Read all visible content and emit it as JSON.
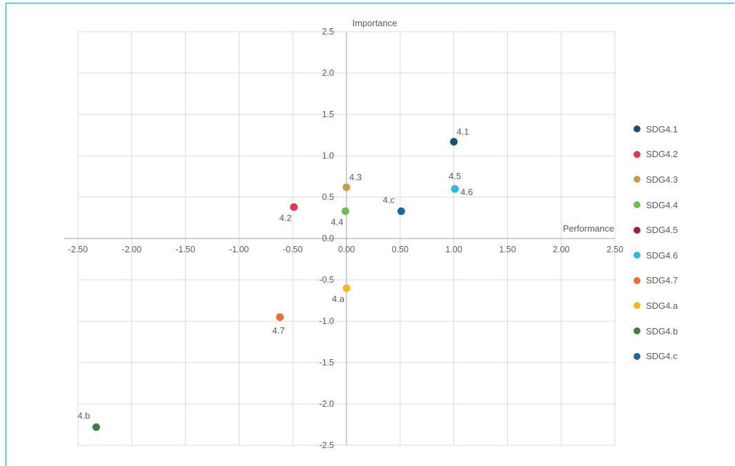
{
  "chart_data": {
    "type": "scatter",
    "title": "",
    "xlabel": "Performance",
    "ylabel": "Importance",
    "xlim": [
      -2.5,
      2.5
    ],
    "ylim": [
      -2.5,
      2.5
    ],
    "x_ticks": [
      "-2.50",
      "-2.00",
      "-1.50",
      "-1.00",
      "-0.50",
      "0.00",
      "0.50",
      "1.00",
      "1.50",
      "2.00",
      "2.50"
    ],
    "y_ticks": [
      "2.5",
      "2.0",
      "1.5",
      "1.0",
      "0.5",
      "0.0",
      "-0.5",
      "-1.0",
      "-1.5",
      "-2.0",
      "-2.5"
    ],
    "x_tick_values": [
      -2.5,
      -2.0,
      -1.5,
      -1.0,
      -0.5,
      0.0,
      0.5,
      1.0,
      1.5,
      2.0,
      2.5
    ],
    "y_tick_values": [
      2.5,
      2.0,
      1.5,
      1.0,
      0.5,
      0.0,
      -0.5,
      -1.0,
      -1.5,
      -2.0,
      -2.5
    ],
    "grid": true,
    "legend_position": "right",
    "series": [
      {
        "name": "SDG4.1",
        "label": "4.1",
        "x": 1.0,
        "y": 1.17,
        "color": "#1b4f72",
        "label_pos": "above-right"
      },
      {
        "name": "SDG4.2",
        "label": "4.2",
        "x": -0.49,
        "y": 0.38,
        "color": "#e8334a",
        "label_pos": "below-left"
      },
      {
        "name": "SDG4.3",
        "label": "4.3",
        "x": 0.0,
        "y": 0.62,
        "color": "#cc9a46",
        "label_pos": "above-right"
      },
      {
        "name": "SDG4.4",
        "label": "4.4",
        "x": -0.01,
        "y": 0.33,
        "color": "#6abf45",
        "label_pos": "below-left"
      },
      {
        "name": "SDG4.5",
        "label": "4.5",
        "x": 1.01,
        "y": 0.6,
        "color": "#a1194b",
        "label_pos": "above"
      },
      {
        "name": "SDG4.6",
        "label": "4.6",
        "x": 1.01,
        "y": 0.6,
        "color": "#26bde2",
        "label_pos": "below-right"
      },
      {
        "name": "SDG4.7",
        "label": "4.7",
        "x": -0.62,
        "y": -0.95,
        "color": "#f26a2e",
        "label_pos": "below"
      },
      {
        "name": "SDG4.a",
        "label": "4.a",
        "x": 0.0,
        "y": -0.6,
        "color": "#fcb714",
        "label_pos": "below-left"
      },
      {
        "name": "SDG4.b",
        "label": "4.b",
        "x": -2.33,
        "y": -2.28,
        "color": "#3f7e44",
        "label_pos": "above-left"
      },
      {
        "name": "SDG4.c",
        "label": "4.c",
        "x": 0.51,
        "y": 0.33,
        "color": "#19699c",
        "label_pos": "above-left"
      }
    ]
  }
}
